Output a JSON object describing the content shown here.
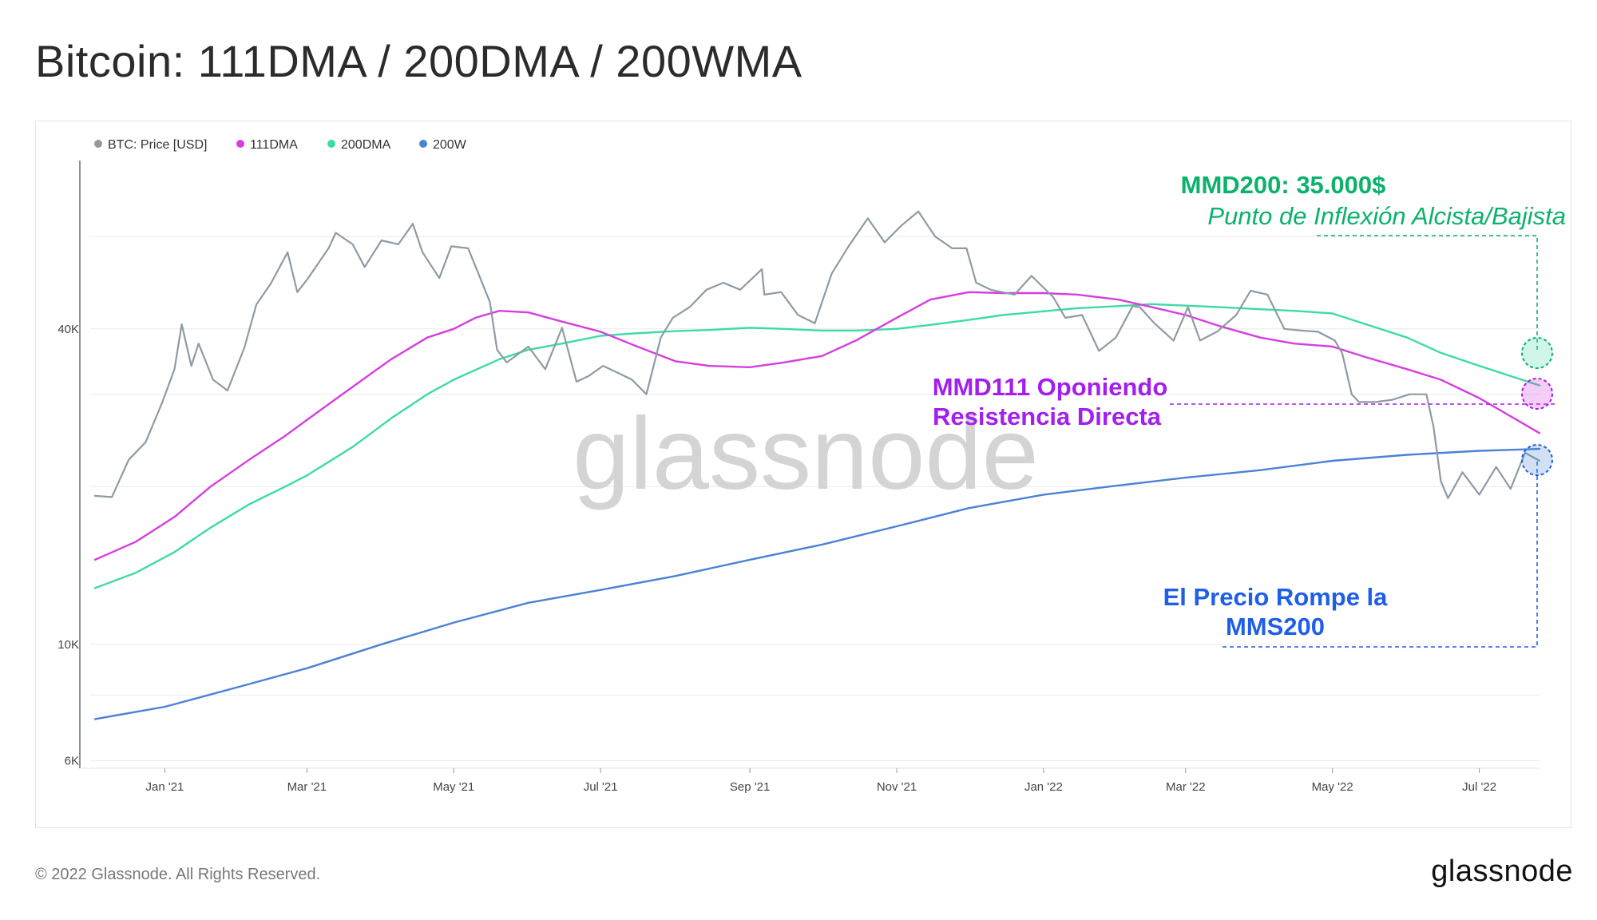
{
  "title": "Bitcoin: 111DMA / 200DMA / 200WMA",
  "footer": {
    "copyright": "© 2022 Glassnode. All Rights Reserved.",
    "logo": "glassnode"
  },
  "watermark": "glassnode",
  "colors": {
    "price": "#8e9ba3",
    "dma111": "#d63de0",
    "dma200": "#3edaa5",
    "wma200": "#4b82d6",
    "green_annotation": "#0ab26b",
    "purple_annotation": "#a31ff0",
    "blue_annotation": "#1f5fe8"
  },
  "annotations": {
    "mmd200": {
      "title": "MMD200: 35.000$",
      "subtitle": "Punto de Inflexión Alcista/Bajista"
    },
    "mmd111": {
      "line1": "MMD111 Oponiendo",
      "line2": "Resistencia Directa"
    },
    "mms200": {
      "line1": "El Precio Rompe la",
      "line2": "MMS200"
    }
  },
  "chart_data": {
    "type": "line",
    "y_scale": "log",
    "legend_position": "top-left",
    "y_ticks": [
      {
        "value": 6000,
        "label": "6K"
      },
      {
        "value": 10000,
        "label": "10K"
      },
      {
        "value": 40000,
        "label": "40K"
      }
    ],
    "x_ticks": [
      {
        "date": "2021-01-01",
        "label": "Jan '21"
      },
      {
        "date": "2021-03-01",
        "label": "Mar '21"
      },
      {
        "date": "2021-05-01",
        "label": "May '21"
      },
      {
        "date": "2021-07-01",
        "label": "Jul '21"
      },
      {
        "date": "2021-09-01",
        "label": "Sep '21"
      },
      {
        "date": "2021-11-01",
        "label": "Nov '21"
      },
      {
        "date": "2022-01-01",
        "label": "Jan '22"
      },
      {
        "date": "2022-03-01",
        "label": "Mar '22"
      },
      {
        "date": "2022-05-01",
        "label": "May '22"
      },
      {
        "date": "2022-07-01",
        "label": "Jul '22"
      }
    ],
    "x_range": [
      "2020-12-01",
      "2022-07-26"
    ],
    "y_range": [
      5800,
      85000
    ],
    "series": [
      {
        "name": "BTC: Price [USD]",
        "key": "price",
        "x": [
          "2020-12-03",
          "2020-12-10",
          "2020-12-17",
          "2020-12-24",
          "2020-12-31",
          "2021-01-05",
          "2021-01-08",
          "2021-01-12",
          "2021-01-15",
          "2021-01-21",
          "2021-01-27",
          "2021-02-03",
          "2021-02-08",
          "2021-02-14",
          "2021-02-21",
          "2021-02-25",
          "2021-03-01",
          "2021-03-10",
          "2021-03-13",
          "2021-03-20",
          "2021-03-25",
          "2021-04-01",
          "2021-04-08",
          "2021-04-14",
          "2021-04-18",
          "2021-04-25",
          "2021-04-30",
          "2021-05-07",
          "2021-05-12",
          "2021-05-16",
          "2021-05-19",
          "2021-05-23",
          "2021-06-01",
          "2021-06-08",
          "2021-06-15",
          "2021-06-21",
          "2021-06-26",
          "2021-07-02",
          "2021-07-08",
          "2021-07-14",
          "2021-07-20",
          "2021-07-26",
          "2021-07-31",
          "2021-08-07",
          "2021-08-14",
          "2021-08-21",
          "2021-08-28",
          "2021-09-06",
          "2021-09-07",
          "2021-09-14",
          "2021-09-21",
          "2021-09-28",
          "2021-10-05",
          "2021-10-12",
          "2021-10-20",
          "2021-10-27",
          "2021-11-03",
          "2021-11-10",
          "2021-11-17",
          "2021-11-24",
          "2021-11-30",
          "2021-12-04",
          "2021-12-10",
          "2021-12-20",
          "2021-12-27",
          "2022-01-05",
          "2022-01-10",
          "2022-01-17",
          "2022-01-24",
          "2022-01-31",
          "2022-02-07",
          "2022-02-10",
          "2022-02-16",
          "2022-02-24",
          "2022-03-02",
          "2022-03-07",
          "2022-03-14",
          "2022-03-22",
          "2022-03-28",
          "2022-04-04",
          "2022-04-11",
          "2022-04-18",
          "2022-04-25",
          "2022-05-02",
          "2022-05-05",
          "2022-05-09",
          "2022-05-12",
          "2022-05-19",
          "2022-05-26",
          "2022-06-02",
          "2022-06-09",
          "2022-06-12",
          "2022-06-15",
          "2022-06-18",
          "2022-06-24",
          "2022-07-01",
          "2022-07-08",
          "2022-07-14",
          "2022-07-20",
          "2022-07-26"
        ],
        "values": [
          19200,
          19100,
          22500,
          24300,
          29000,
          33500,
          40800,
          34000,
          37500,
          32000,
          30500,
          36800,
          44500,
          48800,
          56000,
          47000,
          49600,
          57000,
          61000,
          58000,
          52500,
          59000,
          58000,
          63500,
          56000,
          50000,
          57500,
          57000,
          50000,
          45000,
          36500,
          34500,
          37000,
          33500,
          40200,
          31700,
          32500,
          34000,
          33000,
          32000,
          30000,
          38500,
          42000,
          44000,
          47500,
          49000,
          47500,
          52000,
          46500,
          47000,
          42500,
          41000,
          51000,
          57500,
          65000,
          58500,
          63000,
          67000,
          60000,
          57000,
          57000,
          49000,
          47500,
          46500,
          50500,
          46000,
          42000,
          42500,
          36300,
          38500,
          44200,
          44000,
          41000,
          38000,
          44000,
          38000,
          39500,
          42500,
          47300,
          46500,
          40000,
          39700,
          39500,
          38000,
          36000,
          30000,
          29000,
          29000,
          29300,
          30000,
          30000,
          26000,
          20500,
          19000,
          21300,
          19300,
          21800,
          19800,
          23200,
          22400
        ],
        "color": "#8e9ba3"
      },
      {
        "name": "111DMA",
        "key": "dma111",
        "x": [
          "2020-12-03",
          "2020-12-20",
          "2021-01-05",
          "2021-01-20",
          "2021-02-05",
          "2021-02-20",
          "2021-03-01",
          "2021-03-20",
          "2021-04-05",
          "2021-04-20",
          "2021-05-01",
          "2021-05-10",
          "2021-05-20",
          "2021-06-01",
          "2021-06-15",
          "2021-07-01",
          "2021-07-15",
          "2021-08-01",
          "2021-08-15",
          "2021-09-01",
          "2021-09-15",
          "2021-10-01",
          "2021-10-15",
          "2021-11-01",
          "2021-11-15",
          "2021-12-01",
          "2021-12-15",
          "2022-01-01",
          "2022-01-15",
          "2022-02-01",
          "2022-02-15",
          "2022-03-01",
          "2022-03-15",
          "2022-04-01",
          "2022-04-15",
          "2022-05-01",
          "2022-05-15",
          "2022-06-01",
          "2022-06-15",
          "2022-07-01",
          "2022-07-26"
        ],
        "values": [
          14500,
          15700,
          17500,
          20000,
          22500,
          25000,
          26800,
          31000,
          35000,
          38500,
          40000,
          42000,
          43300,
          43000,
          41300,
          39500,
          37200,
          34700,
          34000,
          33800,
          34500,
          35500,
          38000,
          42000,
          45500,
          47000,
          46800,
          46800,
          46500,
          45500,
          44000,
          42500,
          40500,
          38500,
          37500,
          37000,
          35300,
          33500,
          32000,
          29500,
          25300
        ],
        "color": "#d63de0"
      },
      {
        "name": "200DMA",
        "key": "dma200",
        "x": [
          "2020-12-03",
          "2020-12-20",
          "2021-01-05",
          "2021-01-20",
          "2021-02-05",
          "2021-02-20",
          "2021-03-01",
          "2021-03-20",
          "2021-04-05",
          "2021-04-20",
          "2021-05-01",
          "2021-05-20",
          "2021-06-01",
          "2021-06-15",
          "2021-07-01",
          "2021-07-15",
          "2021-08-01",
          "2021-08-15",
          "2021-09-01",
          "2021-09-15",
          "2021-10-01",
          "2021-10-15",
          "2021-11-01",
          "2021-11-15",
          "2021-12-01",
          "2021-12-15",
          "2022-01-01",
          "2022-01-15",
          "2022-02-01",
          "2022-02-15",
          "2022-03-01",
          "2022-03-15",
          "2022-04-01",
          "2022-04-15",
          "2022-05-01",
          "2022-05-15",
          "2022-06-01",
          "2022-06-15",
          "2022-07-01",
          "2022-07-26"
        ],
        "values": [
          12800,
          13700,
          15000,
          16700,
          18500,
          20000,
          21000,
          23800,
          27000,
          30000,
          32000,
          35000,
          36500,
          37500,
          38800,
          39200,
          39600,
          39800,
          40200,
          40000,
          39700,
          39700,
          40000,
          40700,
          41600,
          42500,
          43200,
          43800,
          44200,
          44600,
          44300,
          44000,
          43600,
          43300,
          42800,
          40800,
          38500,
          36000,
          34000,
          31200
        ],
        "color": "#3edaa5"
      },
      {
        "name": "200W",
        "key": "wma200",
        "x": [
          "2020-12-03",
          "2021-01-01",
          "2021-02-01",
          "2021-03-01",
          "2021-04-01",
          "2021-05-01",
          "2021-06-01",
          "2021-07-01",
          "2021-08-01",
          "2021-09-01",
          "2021-10-01",
          "2021-11-01",
          "2021-12-01",
          "2022-01-01",
          "2022-02-01",
          "2022-03-01",
          "2022-04-01",
          "2022-05-01",
          "2022-06-01",
          "2022-07-01",
          "2022-07-26"
        ],
        "values": [
          7200,
          7600,
          8300,
          9000,
          10000,
          11000,
          12000,
          12700,
          13500,
          14500,
          15500,
          16800,
          18200,
          19300,
          20100,
          20800,
          21500,
          22400,
          23000,
          23400,
          23600
        ],
        "color": "#4b82d6"
      }
    ]
  }
}
